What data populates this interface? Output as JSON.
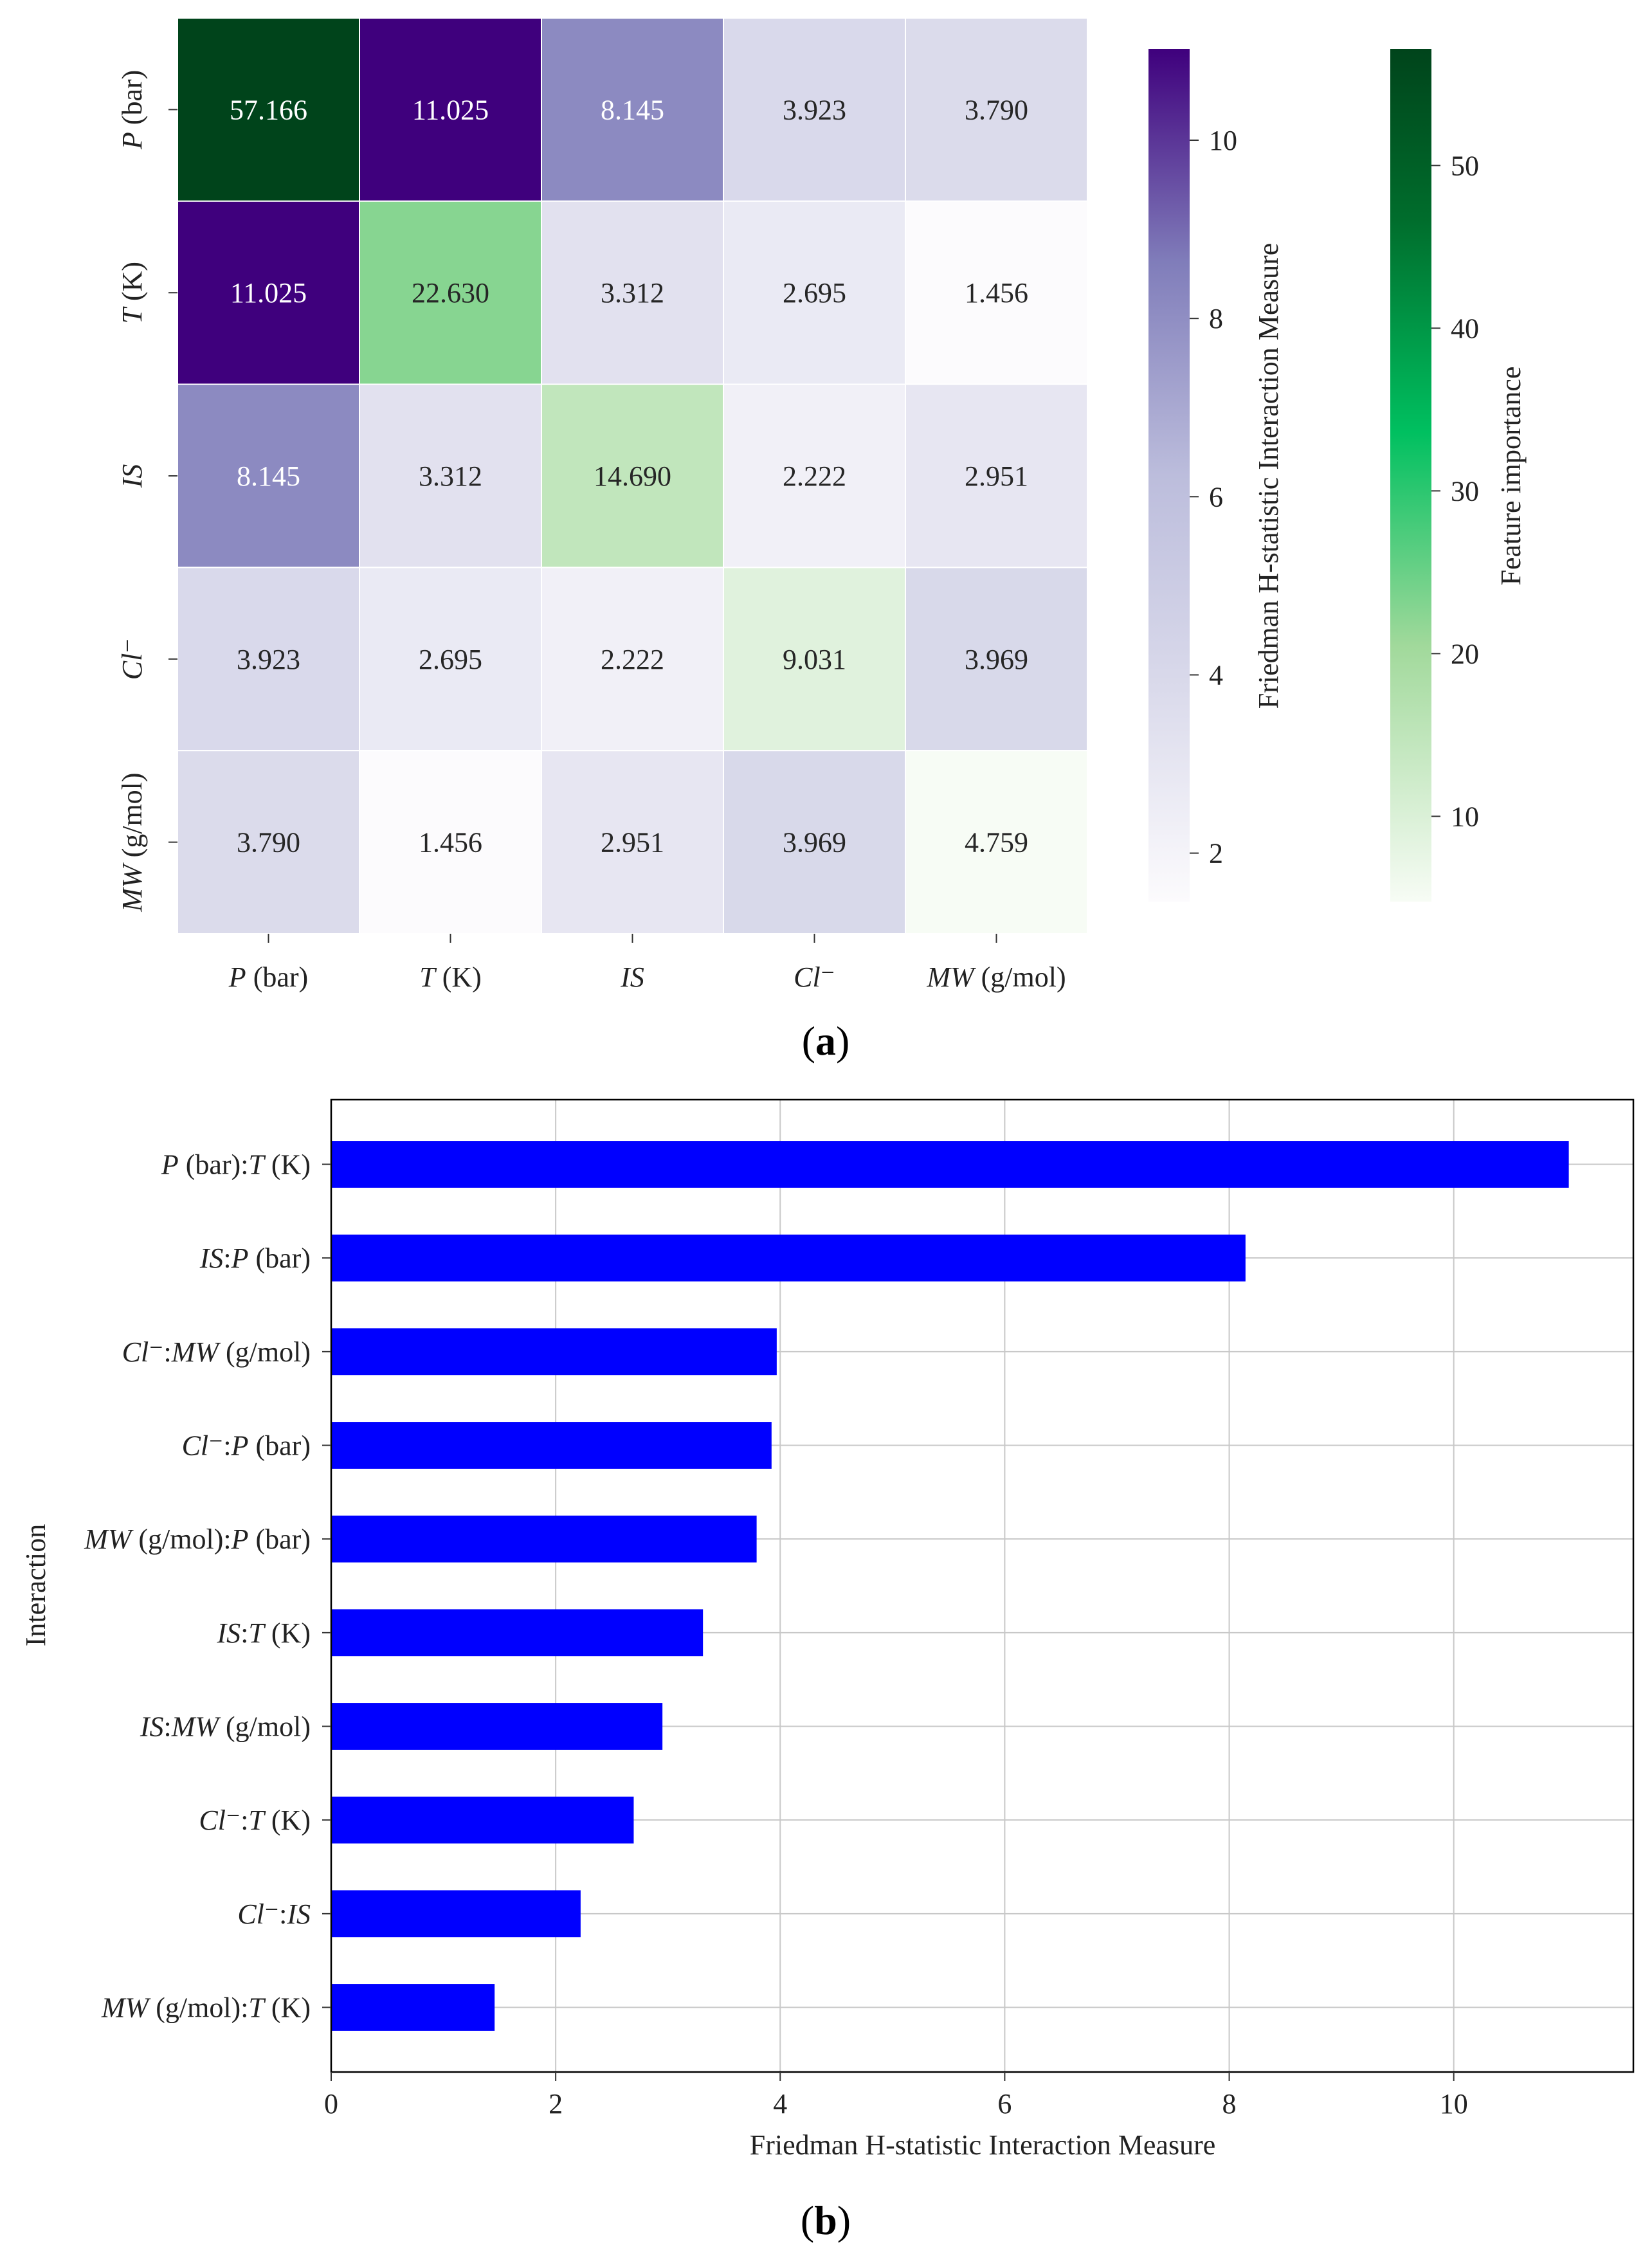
{
  "colors": {
    "purple_low": "#fcfbfd",
    "purple_high": "#3f007d",
    "green_low": "#f7fcf5",
    "green_high": "#00441b",
    "bar": "#0000ff",
    "grid": "#c8c8c8"
  },
  "chart_data": [
    {
      "type": "heatmap",
      "panel_label": "(a)",
      "panel_letter": "a",
      "row_labels": [
        {
          "var": "P",
          "unit": "(bar)"
        },
        {
          "var": "T",
          "unit": "(K)"
        },
        {
          "var": "IS",
          "unit": ""
        },
        {
          "var": "Cl⁻",
          "unit": ""
        },
        {
          "var": "MW",
          "unit": "(g/mol)"
        }
      ],
      "col_labels": [
        {
          "var": "P",
          "unit": "(bar)"
        },
        {
          "var": "T",
          "unit": "(K)"
        },
        {
          "var": "IS",
          "unit": ""
        },
        {
          "var": "Cl⁻",
          "unit": ""
        },
        {
          "var": "MW",
          "unit": "(g/mol)"
        }
      ],
      "values": [
        [
          "57.166",
          "11.025",
          "8.145",
          "3.923",
          "3.790"
        ],
        [
          "11.025",
          "22.630",
          "3.312",
          "2.695",
          "1.456"
        ],
        [
          "8.145",
          "3.312",
          "14.690",
          "2.222",
          "2.951"
        ],
        [
          "3.923",
          "2.695",
          "2.222",
          "9.031",
          "3.969"
        ],
        [
          "3.790",
          "1.456",
          "2.951",
          "3.969",
          "4.759"
        ]
      ],
      "diagonal_scale": "Feature importance",
      "off_diagonal_scale": "Friedman H-statistic Interaction Measure",
      "colorbars": [
        {
          "title": "Friedman H-statistic Interaction Measure",
          "range": [
            1.456,
            11.025
          ],
          "ticks": [
            "2",
            "4",
            "6",
            "8",
            "10"
          ],
          "tick_values": [
            2,
            4,
            6,
            8,
            10
          ]
        },
        {
          "title": "Feature importance",
          "range": [
            4.759,
            57.166
          ],
          "ticks": [
            "10",
            "20",
            "30",
            "40",
            "50"
          ],
          "tick_values": [
            10,
            20,
            30,
            40,
            50
          ]
        }
      ]
    },
    {
      "type": "bar",
      "orientation": "horizontal",
      "panel_label": "(b)",
      "panel_letter": "b",
      "categories": [
        "P (bar):T (K)",
        "IS:P (bar)",
        "Cl⁻:MW (g/mol)",
        "Cl⁻:P (bar)",
        "MW (g/mol):P (bar)",
        "IS:T (K)",
        "IS:MW (g/mol)",
        "Cl⁻:T (K)",
        "Cl⁻:IS",
        "MW (g/mol):T (K)"
      ],
      "category_parts": [
        [
          {
            "t": "P",
            "i": true
          },
          {
            "t": " (bar):",
            "i": false
          },
          {
            "t": "T",
            "i": true
          },
          {
            "t": " (K)",
            "i": false
          }
        ],
        [
          {
            "t": "IS",
            "i": true
          },
          {
            "t": ":",
            "i": false
          },
          {
            "t": "P",
            "i": true
          },
          {
            "t": " (bar)",
            "i": false
          }
        ],
        [
          {
            "t": "Cl⁻",
            "i": true
          },
          {
            "t": ":",
            "i": false
          },
          {
            "t": "MW",
            "i": true
          },
          {
            "t": " (g/mol)",
            "i": false
          }
        ],
        [
          {
            "t": "Cl⁻",
            "i": true
          },
          {
            "t": ":",
            "i": false
          },
          {
            "t": "P",
            "i": true
          },
          {
            "t": " (bar)",
            "i": false
          }
        ],
        [
          {
            "t": "MW",
            "i": true
          },
          {
            "t": " (g/mol):",
            "i": false
          },
          {
            "t": "P",
            "i": true
          },
          {
            "t": " (bar)",
            "i": false
          }
        ],
        [
          {
            "t": "IS",
            "i": true
          },
          {
            "t": ":",
            "i": false
          },
          {
            "t": "T",
            "i": true
          },
          {
            "t": " (K)",
            "i": false
          }
        ],
        [
          {
            "t": "IS",
            "i": true
          },
          {
            "t": ":",
            "i": false
          },
          {
            "t": "MW",
            "i": true
          },
          {
            "t": " (g/mol)",
            "i": false
          }
        ],
        [
          {
            "t": "Cl⁻",
            "i": true
          },
          {
            "t": ":",
            "i": false
          },
          {
            "t": "T",
            "i": true
          },
          {
            "t": " (K)",
            "i": false
          }
        ],
        [
          {
            "t": "Cl⁻",
            "i": true
          },
          {
            "t": ":",
            "i": false
          },
          {
            "t": "IS",
            "i": true
          }
        ],
        [
          {
            "t": "MW",
            "i": true
          },
          {
            "t": " (g/mol):",
            "i": false
          },
          {
            "t": "T",
            "i": true
          },
          {
            "t": " (K)",
            "i": false
          }
        ]
      ],
      "values": [
        11.025,
        8.145,
        3.969,
        3.923,
        3.79,
        3.312,
        2.951,
        2.695,
        2.222,
        1.456
      ],
      "xlabel": "Friedman H-statistic Interaction Measure",
      "ylabel": "Interaction",
      "xlim": [
        0,
        11.6
      ],
      "xticks": [
        "0",
        "2",
        "4",
        "6",
        "8",
        "10"
      ],
      "xtick_values": [
        0,
        2,
        4,
        6,
        8,
        10
      ],
      "grid": true
    }
  ]
}
